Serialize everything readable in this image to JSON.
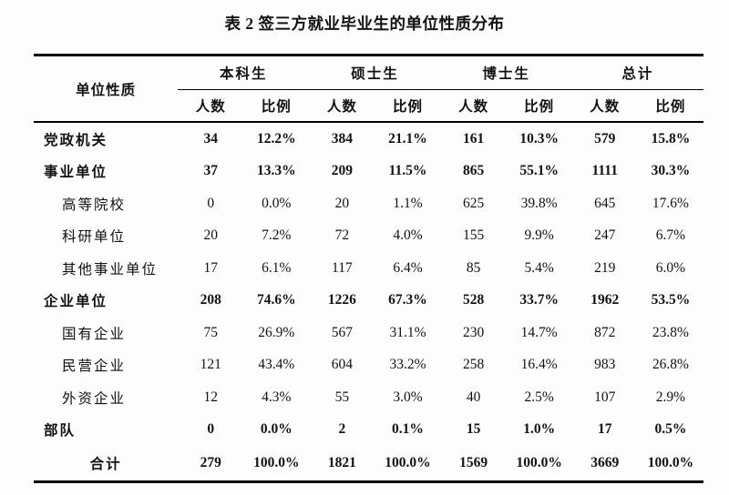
{
  "title": "表 2 签三方就业毕业生的单位性质分布",
  "colors": {
    "background": "#fdfdfd",
    "text": "#121212",
    "rule": "#000000"
  },
  "table": {
    "row_header": "单位性质",
    "groups": [
      "本科生",
      "硕士生",
      "博士生",
      "总计"
    ],
    "sub_headers": [
      "人数",
      "比例"
    ],
    "rows": [
      {
        "label": "党政机关",
        "level": 0,
        "bold": true,
        "total": false,
        "values": [
          "34",
          "12.2%",
          "384",
          "21.1%",
          "161",
          "10.3%",
          "579",
          "15.8%"
        ]
      },
      {
        "label": "事业单位",
        "level": 0,
        "bold": true,
        "total": false,
        "values": [
          "37",
          "13.3%",
          "209",
          "11.5%",
          "865",
          "55.1%",
          "1111",
          "30.3%"
        ]
      },
      {
        "label": "高等院校",
        "level": 1,
        "bold": false,
        "total": false,
        "values": [
          "0",
          "0.0%",
          "20",
          "1.1%",
          "625",
          "39.8%",
          "645",
          "17.6%"
        ]
      },
      {
        "label": "科研单位",
        "level": 1,
        "bold": false,
        "total": false,
        "values": [
          "20",
          "7.2%",
          "72",
          "4.0%",
          "155",
          "9.9%",
          "247",
          "6.7%"
        ]
      },
      {
        "label": "其他事业单位",
        "level": 1,
        "bold": false,
        "total": false,
        "values": [
          "17",
          "6.1%",
          "117",
          "6.4%",
          "85",
          "5.4%",
          "219",
          "6.0%"
        ]
      },
      {
        "label": "企业单位",
        "level": 0,
        "bold": true,
        "total": false,
        "values": [
          "208",
          "74.6%",
          "1226",
          "67.3%",
          "528",
          "33.7%",
          "1962",
          "53.5%"
        ]
      },
      {
        "label": "国有企业",
        "level": 1,
        "bold": false,
        "total": false,
        "values": [
          "75",
          "26.9%",
          "567",
          "31.1%",
          "230",
          "14.7%",
          "872",
          "23.8%"
        ]
      },
      {
        "label": "民营企业",
        "level": 1,
        "bold": false,
        "total": false,
        "values": [
          "121",
          "43.4%",
          "604",
          "33.2%",
          "258",
          "16.4%",
          "983",
          "26.8%"
        ]
      },
      {
        "label": "外资企业",
        "level": 1,
        "bold": false,
        "total": false,
        "values": [
          "12",
          "4.3%",
          "55",
          "3.0%",
          "40",
          "2.5%",
          "107",
          "2.9%"
        ]
      },
      {
        "label": "部队",
        "level": 0,
        "bold": true,
        "total": false,
        "values": [
          "0",
          "0.0%",
          "2",
          "0.1%",
          "15",
          "1.0%",
          "17",
          "0.5%"
        ]
      },
      {
        "label": "合计",
        "level": 0,
        "bold": true,
        "total": true,
        "values": [
          "279",
          "100.0%",
          "1821",
          "100.0%",
          "1569",
          "100.0%",
          "3669",
          "100.0%"
        ]
      }
    ]
  }
}
